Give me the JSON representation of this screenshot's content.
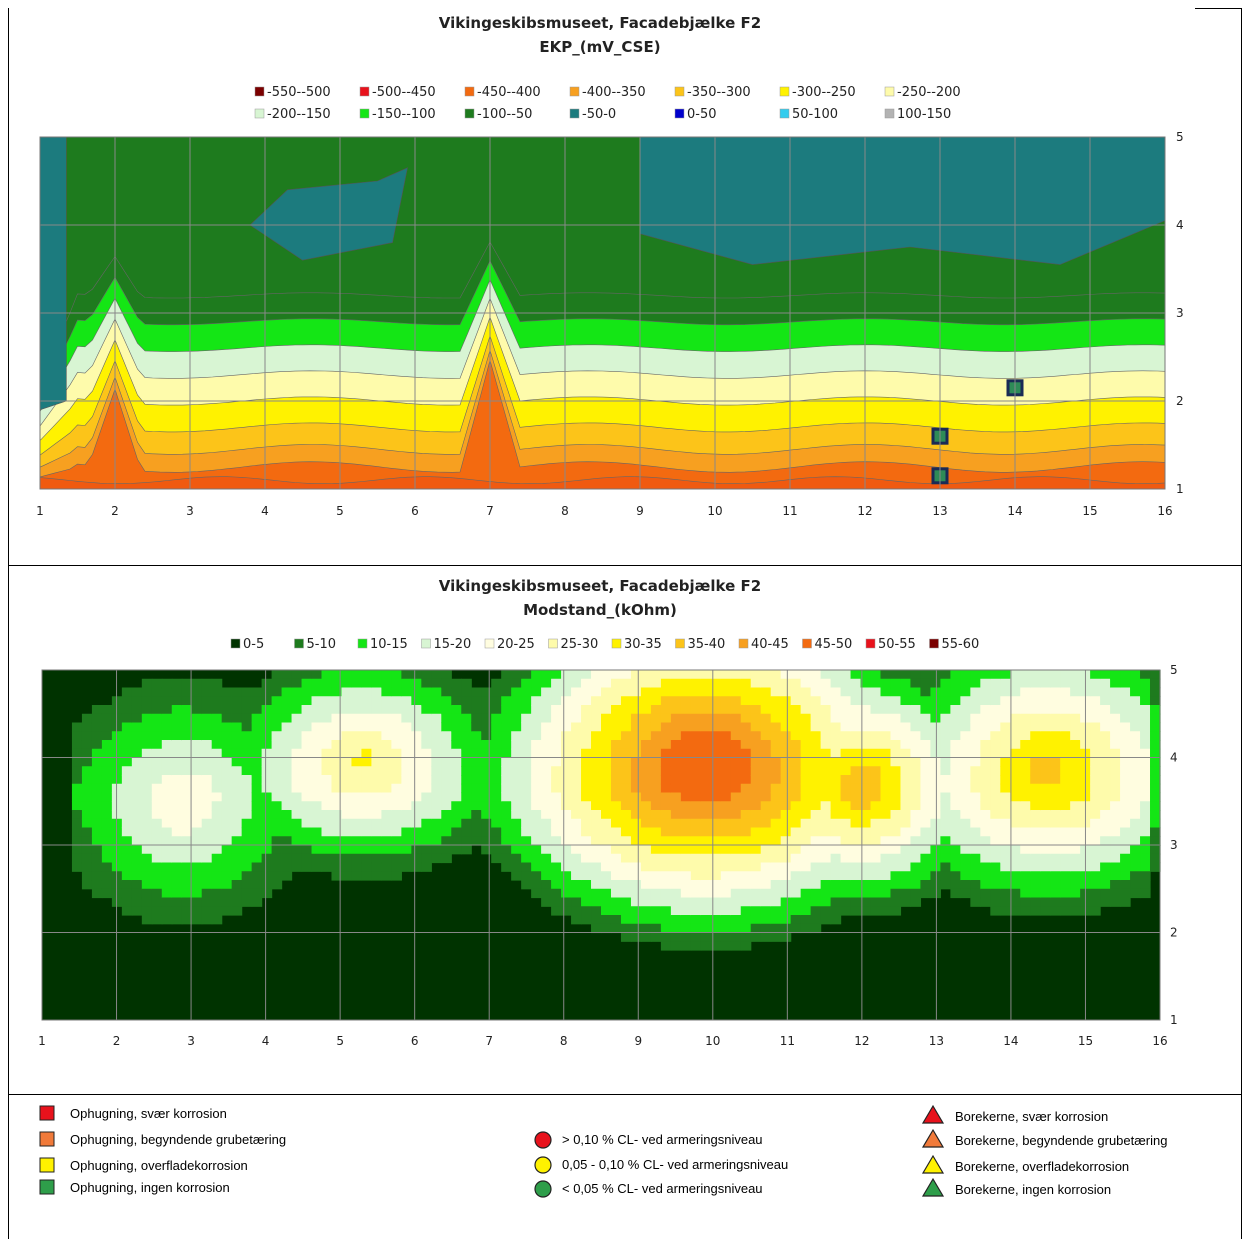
{
  "chart_data": [
    {
      "type": "heatmap",
      "subtype": "filled-contour",
      "title": "Vikingeskibsmuseet, Facadebjælke F2",
      "subtitle": "EKP_(mV_CSE)",
      "x_ticks": [
        "1",
        "2",
        "3",
        "4",
        "5",
        "6",
        "7",
        "8",
        "9",
        "10",
        "11",
        "12",
        "13",
        "14",
        "15",
        "16"
      ],
      "y_ticks": [
        "1",
        "2",
        "3",
        "4",
        "5"
      ],
      "xlim": [
        1,
        16
      ],
      "ylim": [
        1,
        5
      ],
      "grid": true,
      "legend_position": "top",
      "legend": [
        {
          "label": "-550--500",
          "color": "#7b0000"
        },
        {
          "label": "-500--450",
          "color": "#e8121c"
        },
        {
          "label": "-450--400",
          "color": "#f36a10"
        },
        {
          "label": "-400--350",
          "color": "#f7a020"
        },
        {
          "label": "-350--300",
          "color": "#fcc419"
        },
        {
          "label": "-300--250",
          "color": "#fff200"
        },
        {
          "label": "-250--200",
          "color": "#fefbab"
        },
        {
          "label": "-200--150",
          "color": "#d8f5d3"
        },
        {
          "label": "-150--100",
          "color": "#14e615"
        },
        {
          "label": "-100--50",
          "color": "#1e7b1e"
        },
        {
          "label": "-50-0",
          "color": "#1c7b7e"
        },
        {
          "label": "0-50",
          "color": "#0000cc"
        },
        {
          "label": "50-100",
          "color": "#33ccee"
        },
        {
          "label": "100-150",
          "color": "#b3b3b3"
        }
      ],
      "contours": {
        "yvals": [
          1.1,
          1.25,
          1.45,
          1.7,
          2.0,
          2.3,
          2.6,
          2.9,
          3.2
        ],
        "colors": [
          "#f36a10",
          "#f7a020",
          "#fcc419",
          "#fff200",
          "#fefbab",
          "#d8f5d3",
          "#14e615",
          "#1e7b1e"
        ],
        "base_color": "#1e7b1e",
        "peaks": [
          {
            "x": 2,
            "height": 0.9,
            "width": 0.35
          },
          {
            "x": 7,
            "height": 1.25,
            "width": 0.4
          }
        ],
        "zones": [
          {
            "points": [
              [
                1,
                5
              ],
              [
                1.35,
                5
              ],
              [
                1.35,
                2.0
              ],
              [
                1,
                1.9
              ]
            ],
            "color": "#1c7b7e"
          },
          {
            "points": [
              [
                3.8,
                4.0
              ],
              [
                4.3,
                4.4
              ],
              [
                5.5,
                4.5
              ],
              [
                5.9,
                4.65
              ],
              [
                5.7,
                3.8
              ],
              [
                4.5,
                3.6
              ]
            ],
            "color": "#1c7b7e"
          },
          {
            "points": [
              [
                9,
                5
              ],
              [
                16,
                5
              ],
              [
                16,
                4.05
              ],
              [
                14.6,
                3.55
              ],
              [
                12.6,
                3.75
              ],
              [
                10.5,
                3.55
              ],
              [
                9,
                3.9
              ]
            ],
            "color": "#1c7b7e"
          }
        ]
      },
      "markers": [
        {
          "x": 14,
          "y": 2.15,
          "color": "#2e8b57",
          "shape": "square"
        },
        {
          "x": 13,
          "y": 1.6,
          "color": "#2e8b57",
          "shape": "square"
        },
        {
          "x": 13,
          "y": 1.15,
          "color": "#2e8b57",
          "shape": "square"
        }
      ]
    },
    {
      "type": "heatmap",
      "subtype": "filled-contour",
      "title": "Vikingeskibsmuseet, Facadebjælke F2",
      "subtitle": "Modstand_(kOhm)",
      "x_ticks": [
        "1",
        "2",
        "3",
        "4",
        "5",
        "6",
        "7",
        "8",
        "9",
        "10",
        "11",
        "12",
        "13",
        "14",
        "15",
        "16"
      ],
      "y_ticks": [
        "1",
        "2",
        "3",
        "4",
        "5"
      ],
      "xlim": [
        1,
        16
      ],
      "ylim": [
        1,
        5
      ],
      "grid": true,
      "legend_position": "top",
      "legend": [
        {
          "label": "0-5",
          "color": "#003300"
        },
        {
          "label": "5-10",
          "color": "#1e7b1e"
        },
        {
          "label": "10-15",
          "color": "#14e615"
        },
        {
          "label": "15-20",
          "color": "#d8f5d3"
        },
        {
          "label": "20-25",
          "color": "#fffde0"
        },
        {
          "label": "25-30",
          "color": "#fefbab"
        },
        {
          "label": "30-35",
          "color": "#fff200"
        },
        {
          "label": "35-40",
          "color": "#fcc419"
        },
        {
          "label": "40-45",
          "color": "#f7a020"
        },
        {
          "label": "45-50",
          "color": "#f36a10"
        },
        {
          "label": "50-55",
          "color": "#e8121c"
        },
        {
          "label": "55-60",
          "color": "#7b0000"
        }
      ],
      "contours": {
        "base_color": "#003300",
        "blobs": [
          {
            "cx": 2.9,
            "cy": 3.45,
            "rx": 1.4,
            "ry": 1.35,
            "peak": 18
          },
          {
            "cx": 5.3,
            "cy": 4.0,
            "rx": 1.6,
            "ry": 1.15,
            "peak": 26
          },
          {
            "cx": 9.9,
            "cy": 3.95,
            "rx": 2.6,
            "ry": 1.85,
            "peak": 48
          },
          {
            "cx": 12.0,
            "cy": 3.7,
            "rx": 1.4,
            "ry": 1.3,
            "peak": 34
          },
          {
            "cx": 14.5,
            "cy": 3.9,
            "rx": 1.9,
            "ry": 1.5,
            "peak": 32
          }
        ],
        "levels": [
          5,
          10,
          15,
          20,
          25,
          30,
          35,
          40,
          45
        ],
        "colors": [
          "#1e7b1e",
          "#14e615",
          "#d8f5d3",
          "#fffde0",
          "#fefbab",
          "#fff200",
          "#fcc419",
          "#f7a020",
          "#f36a10"
        ]
      }
    }
  ],
  "key": {
    "squares": [
      {
        "label": "Ophugning, svær korrosion",
        "color": "#e8121c"
      },
      {
        "label": "Ophugning, begyndende grubetæring",
        "color": "#f07a3a"
      },
      {
        "label": "Ophugning, overfladekorrosion",
        "color": "#fff200"
      },
      {
        "label": "Ophugning, ingen korrosion",
        "color": "#2e9e4a"
      }
    ],
    "circles": [
      {
        "label": "> 0,10 %  CL- ved armeringsniveau",
        "color": "#e8121c"
      },
      {
        "label": "0,05 - 0,10 %  CL- ved armeringsniveau",
        "color": "#fff200"
      },
      {
        "label": "< 0,05 %  CL- ved armeringsniveau",
        "color": "#2e9e4a"
      }
    ],
    "triangles": [
      {
        "label": "Borekerne, svær korrosion",
        "color": "#e8121c"
      },
      {
        "label": "Borekerne, begyndende grubetæring",
        "color": "#f07a3a"
      },
      {
        "label": "Borekerne, overfladekorrosion",
        "color": "#fff200"
      },
      {
        "label": "Borekerne, ingen korrosion",
        "color": "#2e9e4a"
      }
    ]
  }
}
